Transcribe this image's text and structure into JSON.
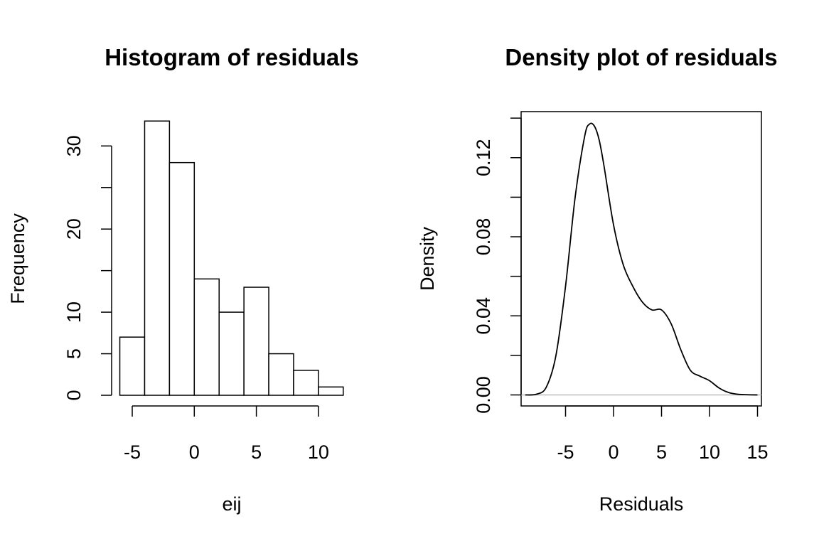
{
  "chart_data": [
    {
      "type": "bar",
      "title": "Histogram of residuals",
      "xlabel": "eij",
      "ylabel": "Frequency",
      "bin_edges": [
        -6,
        -4,
        -2,
        0,
        2,
        4,
        6,
        8,
        10,
        12
      ],
      "values": [
        7,
        33,
        28,
        14,
        10,
        13,
        5,
        3,
        1
      ],
      "x_ticks": [
        "-5",
        "0",
        "5",
        "10"
      ],
      "y_ticks": [
        "0",
        "5",
        "10",
        "20",
        "30"
      ],
      "ylim": [
        0,
        33
      ],
      "grid": false
    },
    {
      "type": "line",
      "title": "Density plot of residuals",
      "xlabel": "Residuals",
      "ylabel": "Density",
      "x": [
        -9.2,
        -8,
        -7,
        -6,
        -5,
        -4,
        -3,
        -2.5,
        -2,
        -1.5,
        -1,
        0,
        1,
        2,
        3,
        4,
        5,
        6,
        7,
        8,
        9,
        10,
        11,
        12,
        13,
        14,
        15
      ],
      "y": [
        0.0,
        0.0004,
        0.004,
        0.02,
        0.055,
        0.1,
        0.131,
        0.137,
        0.136,
        0.129,
        0.116,
        0.086,
        0.066,
        0.055,
        0.047,
        0.043,
        0.043,
        0.036,
        0.023,
        0.0125,
        0.0095,
        0.0072,
        0.0035,
        0.0012,
        0.0003,
        0.0001,
        0.0
      ],
      "x_ticks": [
        "-5",
        "0",
        "5",
        "10",
        "15"
      ],
      "y_ticks": [
        "0.00",
        "0.04",
        "0.08",
        "0.12"
      ],
      "xlim": [
        -9.2,
        15.3
      ],
      "ylim": [
        -0.0053,
        0.1432
      ],
      "baseline_color": "#bebebe",
      "grid": false
    }
  ]
}
